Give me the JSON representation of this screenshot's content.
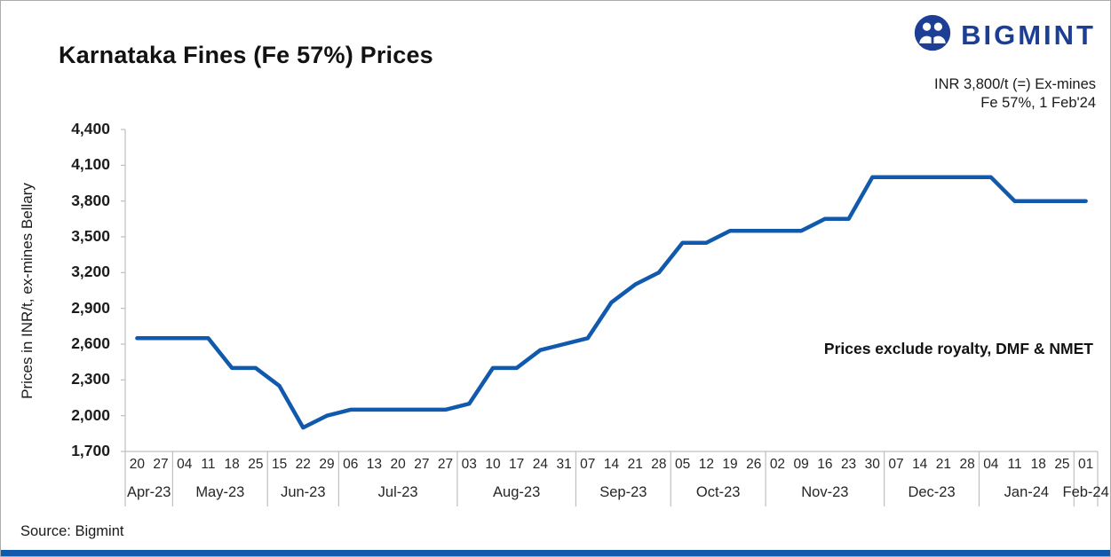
{
  "header": {
    "title": "Karnataka Fines (Fe 57%) Prices",
    "brand_name": "BIGMINT",
    "callout_line1": "INR 3,800/t (=) Ex-mines",
    "callout_line2": "Fe 57%, 1 Feb'24"
  },
  "footer": {
    "source": "Source: Bigmint"
  },
  "colors": {
    "line": "#1059ac",
    "brand": "#1c3e94",
    "axis": "#bfbfbf",
    "accent_bar": "#1059ac"
  },
  "chart_data": {
    "type": "line",
    "title": "Karnataka Fines (Fe 57%) Prices",
    "series_name": "Karnataka fines Fe 57% ex-mines price",
    "ylabel": "Prices in INR/t, ex-mines Bellary",
    "ylim": [
      1700,
      4400
    ],
    "ytick_step": 300,
    "yticks": [
      1700,
      2000,
      2300,
      2600,
      2900,
      3200,
      3500,
      3800,
      4100,
      4400
    ],
    "grid": false,
    "annotation": "Prices exclude royalty, DMF & NMET",
    "end_label": "INR 3,800/t (=) Ex-mines Fe 57%, 1 Feb'24",
    "x_groups": [
      {
        "month": "Apr-23",
        "days": [
          "20",
          "27"
        ]
      },
      {
        "month": "May-23",
        "days": [
          "04",
          "11",
          "18",
          "25"
        ]
      },
      {
        "month": "Jun-23",
        "days": [
          "15",
          "22",
          "29"
        ]
      },
      {
        "month": "Jul-23",
        "days": [
          "06",
          "13",
          "20",
          "27",
          "27"
        ]
      },
      {
        "month": "Aug-23",
        "days": [
          "03",
          "10",
          "17",
          "24",
          "31"
        ]
      },
      {
        "month": "Sep-23",
        "days": [
          "07",
          "14",
          "21",
          "28"
        ]
      },
      {
        "month": "Oct-23",
        "days": [
          "05",
          "12",
          "19",
          "26"
        ]
      },
      {
        "month": "Nov-23",
        "days": [
          "02",
          "09",
          "16",
          "23",
          "30"
        ]
      },
      {
        "month": "Dec-23",
        "days": [
          "07",
          "14",
          "21",
          "28"
        ]
      },
      {
        "month": "Jan-24",
        "days": [
          "04",
          "11",
          "18",
          "25"
        ]
      },
      {
        "month": "Feb-24",
        "days": [
          "01"
        ]
      }
    ],
    "values": [
      2650,
      2650,
      2650,
      2650,
      2400,
      2400,
      2250,
      1900,
      2000,
      2050,
      2050,
      2050,
      2050,
      2050,
      2100,
      2400,
      2400,
      2550,
      2600,
      2650,
      2950,
      3100,
      3200,
      3450,
      3450,
      3550,
      3550,
      3550,
      3550,
      3650,
      3650,
      4000,
      4000,
      4000,
      4000,
      4000,
      4000,
      3800,
      3800,
      3800,
      3800
    ]
  }
}
